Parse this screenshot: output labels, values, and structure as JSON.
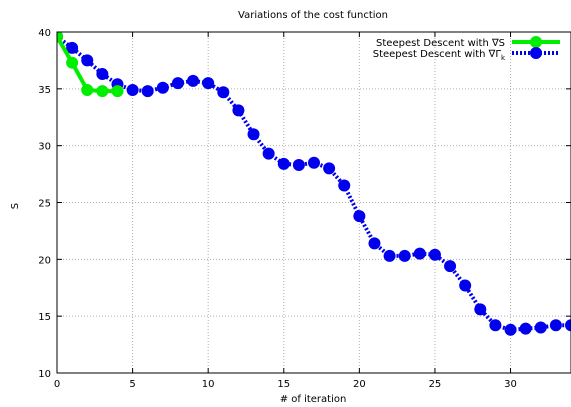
{
  "chart_data": {
    "type": "line",
    "title": "Variations of the cost function",
    "xlabel": "# of iteration",
    "ylabel": "S",
    "xlim": [
      0,
      34
    ],
    "ylim": [
      10,
      40
    ],
    "xticks": [
      0,
      5,
      10,
      15,
      20,
      25,
      30
    ],
    "yticks": [
      10,
      15,
      20,
      25,
      30,
      35,
      40
    ],
    "grid": true,
    "legend_position": "top-right",
    "series": [
      {
        "name": "Steepest Descent with ∇S",
        "color": "#00ee00",
        "line_style": "solid",
        "x": [
          0,
          1,
          2,
          3,
          4
        ],
        "y": [
          39.6,
          37.3,
          34.9,
          34.8,
          34.8
        ]
      },
      {
        "name": "Steepest Descent with ∇Γ",
        "legend_subscript": "k",
        "color": "#0000ee",
        "line_style": "dotted",
        "x": [
          0,
          1,
          2,
          3,
          4,
          5,
          6,
          7,
          8,
          9,
          10,
          11,
          12,
          13,
          14,
          15,
          16,
          17,
          18,
          19,
          20,
          21,
          22,
          23,
          24,
          25,
          26,
          27,
          28,
          29,
          30,
          31,
          32,
          33,
          34
        ],
        "y": [
          39.6,
          38.6,
          37.5,
          36.3,
          35.4,
          34.9,
          34.8,
          35.1,
          35.5,
          35.7,
          35.5,
          34.7,
          33.1,
          31.0,
          29.3,
          28.4,
          28.3,
          28.5,
          28.0,
          26.5,
          23.8,
          21.4,
          20.3,
          20.3,
          20.5,
          20.4,
          19.4,
          17.7,
          15.6,
          14.2,
          13.8,
          13.9,
          14.0,
          14.2,
          14.2
        ]
      }
    ]
  }
}
